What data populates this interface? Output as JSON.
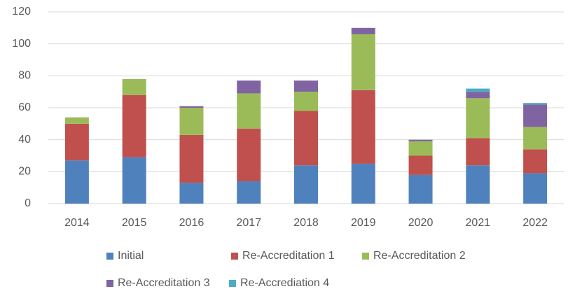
{
  "chart_data": {
    "type": "stacked_bar",
    "categories": [
      "2014",
      "2015",
      "2016",
      "2017",
      "2018",
      "2019",
      "2020",
      "2021",
      "2022"
    ],
    "series": [
      {
        "name": "Initial",
        "color": "#4f81bd",
        "values": [
          27,
          29,
          13,
          14,
          24,
          25,
          18,
          24,
          19
        ]
      },
      {
        "name": "Re-Accreditation 1",
        "color": "#c0504d",
        "values": [
          23,
          39,
          30,
          33,
          34,
          46,
          12,
          17,
          15
        ]
      },
      {
        "name": "Re-Accreditation 2",
        "color": "#9bbb59",
        "values": [
          4,
          10,
          17,
          22,
          12,
          35,
          9,
          25,
          14
        ]
      },
      {
        "name": "Re-Accreditation 3",
        "color": "#8064a2",
        "values": [
          0,
          0,
          1,
          8,
          7,
          4,
          1,
          4,
          14
        ]
      },
      {
        "name": "Re-Accrediation 4",
        "color": "#4bacc6",
        "values": [
          0,
          0,
          0,
          0,
          0,
          0,
          0,
          2,
          1
        ]
      }
    ],
    "ylim": [
      0,
      120
    ],
    "yticks": [
      0,
      20,
      40,
      60,
      80,
      100,
      120
    ],
    "grid": true
  }
}
